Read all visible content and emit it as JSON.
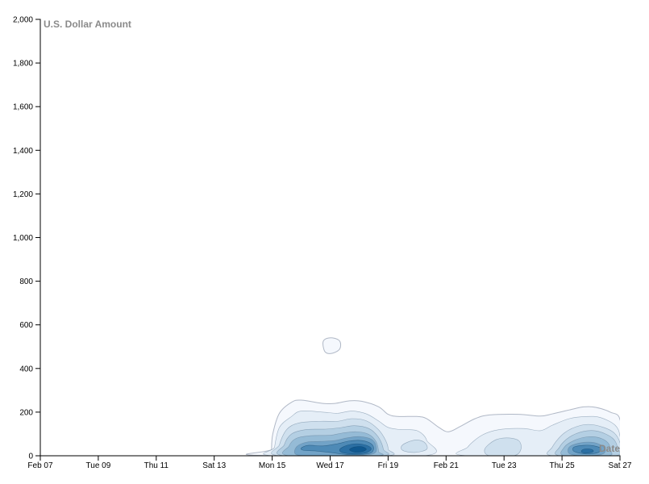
{
  "chart_data": {
    "type": "density-contour",
    "title": "",
    "xlabel": "Date",
    "ylabel": "U.S. Dollar Amount",
    "x_domain": [
      "2021-02-07",
      "2021-02-27"
    ],
    "ylim": [
      0,
      2000
    ],
    "x_ticks": [
      {
        "date": "2021-02-07",
        "label": "Feb 07"
      },
      {
        "date": "2021-02-09",
        "label": "Tue 09"
      },
      {
        "date": "2021-02-11",
        "label": "Thu 11"
      },
      {
        "date": "2021-02-13",
        "label": "Sat 13"
      },
      {
        "date": "2021-02-15",
        "label": "Mon 15"
      },
      {
        "date": "2021-02-17",
        "label": "Wed 17"
      },
      {
        "date": "2021-02-19",
        "label": "Fri 19"
      },
      {
        "date": "2021-02-21",
        "label": "Feb 21"
      },
      {
        "date": "2021-02-23",
        "label": "Tue 23"
      },
      {
        "date": "2021-02-25",
        "label": "Thu 25"
      },
      {
        "date": "2021-02-27",
        "label": "Sat 27"
      }
    ],
    "y_ticks": [
      {
        "value": 0,
        "label": "0"
      },
      {
        "value": 200,
        "label": "200"
      },
      {
        "value": 400,
        "label": "400"
      },
      {
        "value": 600,
        "label": "600"
      },
      {
        "value": 800,
        "label": "800"
      },
      {
        "value": 1000,
        "label": "1,000"
      },
      {
        "value": 1200,
        "label": "1,200"
      },
      {
        "value": 1400,
        "label": "1,400"
      },
      {
        "value": 1600,
        "label": "1,600"
      },
      {
        "value": 1800,
        "label": "1,800"
      },
      {
        "value": 2000,
        "label": "2,000"
      }
    ],
    "grid": false,
    "color_scheme": [
      "#f5f8fd",
      "#e5eef7",
      "#cfe0ee",
      "#b4cfe3",
      "#95bbd6",
      "#72a3c7",
      "#4e8ab6",
      "#2b6fa3",
      "#10588f"
    ],
    "outline_color": "#b0b8c6",
    "contours": [
      {
        "level": 1,
        "polygon": [
          [
            "2021-02-15T00:00",
            0
          ],
          [
            "2021-02-14T23:30",
            30
          ],
          [
            "2021-02-15T00:30",
            100
          ],
          [
            "2021-02-15T06:00",
            195
          ],
          [
            "2021-02-15T16:00",
            245
          ],
          [
            "2021-02-16T00:00",
            255
          ],
          [
            "2021-02-16T18:00",
            240
          ],
          [
            "2021-02-17T04:00",
            240
          ],
          [
            "2021-02-17T16:00",
            252
          ],
          [
            "2021-02-18T02:00",
            250
          ],
          [
            "2021-02-18T16:00",
            225
          ],
          [
            "2021-02-19T00:00",
            190
          ],
          [
            "2021-02-19T08:00",
            180
          ],
          [
            "2021-02-20T00:00",
            180
          ],
          [
            "2021-02-20T08:00",
            170
          ],
          [
            "2021-02-20T18:00",
            130
          ],
          [
            "2021-02-21T02:00",
            110
          ],
          [
            "2021-02-21T12:00",
            135
          ],
          [
            "2021-02-22T00:00",
            170
          ],
          [
            "2021-02-22T12:00",
            187
          ],
          [
            "2021-02-23T12:00",
            190
          ],
          [
            "2021-02-24T06:00",
            182
          ],
          [
            "2021-02-24T16:00",
            192
          ],
          [
            "2021-02-25T06:00",
            210
          ],
          [
            "2021-02-25T18:00",
            224
          ],
          [
            "2021-02-26T04:00",
            222
          ],
          [
            "2021-02-26T16:00",
            200
          ],
          [
            "2021-02-27T00:00",
            165
          ],
          [
            "2021-02-27T00:00",
            0
          ]
        ]
      },
      {
        "level": 1,
        "polygon": [
          [
            "2021-02-16T18:00",
            515
          ],
          [
            "2021-02-16T20:00",
            535
          ],
          [
            "2021-02-17T02:00",
            540
          ],
          [
            "2021-02-17T08:00",
            525
          ],
          [
            "2021-02-17T08:00",
            490
          ],
          [
            "2021-02-17T02:00",
            470
          ],
          [
            "2021-02-16T20:00",
            475
          ]
        ]
      },
      {
        "level": 2,
        "polygon": [
          [
            "2021-02-15T02:00",
            0
          ],
          [
            "2021-02-15T02:00",
            40
          ],
          [
            "2021-02-15T06:00",
            130
          ],
          [
            "2021-02-15T16:00",
            180
          ],
          [
            "2021-02-16T00:00",
            205
          ],
          [
            "2021-02-16T18:00",
            200
          ],
          [
            "2021-02-17T06:00",
            195
          ],
          [
            "2021-02-17T18:00",
            205
          ],
          [
            "2021-02-18T06:00",
            192
          ],
          [
            "2021-02-18T16:00",
            160
          ],
          [
            "2021-02-19T00:00",
            130
          ],
          [
            "2021-02-19T10:00",
            120
          ],
          [
            "2021-02-20T00:00",
            115
          ],
          [
            "2021-02-20T08:00",
            70
          ],
          [
            "2021-02-20T06:00",
            0
          ]
        ]
      },
      {
        "level": 2,
        "polygon": [
          [
            "2021-02-21T18:00",
            0
          ],
          [
            "2021-02-21T18:00",
            40
          ],
          [
            "2021-02-22T06:00",
            95
          ],
          [
            "2021-02-22T20:00",
            120
          ],
          [
            "2021-02-23T16:00",
            125
          ],
          [
            "2021-02-24T06:00",
            115
          ],
          [
            "2021-02-24T16:00",
            140
          ],
          [
            "2021-02-25T06:00",
            170
          ],
          [
            "2021-02-25T20:00",
            180
          ],
          [
            "2021-02-26T08:00",
            175
          ],
          [
            "2021-02-26T20:00",
            140
          ],
          [
            "2021-02-27T00:00",
            90
          ],
          [
            "2021-02-27T00:00",
            0
          ]
        ]
      },
      {
        "level": 3,
        "polygon": [
          [
            "2021-02-15T06:00",
            0
          ],
          [
            "2021-02-15T06:00",
            50
          ],
          [
            "2021-02-15T12:00",
            120
          ],
          [
            "2021-02-15T22:00",
            150
          ],
          [
            "2021-02-16T16:00",
            158
          ],
          [
            "2021-02-17T06:00",
            158
          ],
          [
            "2021-02-17T18:00",
            170
          ],
          [
            "2021-02-18T06:00",
            160
          ],
          [
            "2021-02-18T16:00",
            120
          ],
          [
            "2021-02-18T22:00",
            70
          ],
          [
            "2021-02-19T00:00",
            30
          ],
          [
            "2021-02-18T22:00",
            0
          ]
        ]
      },
      {
        "level": 3,
        "polygon": [
          [
            "2021-02-19T12:00",
            50
          ],
          [
            "2021-02-19T22:00",
            72
          ],
          [
            "2021-02-20T06:00",
            62
          ],
          [
            "2021-02-20T08:00",
            30
          ],
          [
            "2021-02-19T22:00",
            15
          ],
          [
            "2021-02-19T12:00",
            25
          ]
        ]
      },
      {
        "level": 3,
        "polygon": [
          [
            "2021-02-22T12:00",
            0
          ],
          [
            "2021-02-22T08:00",
            30
          ],
          [
            "2021-02-22T16:00",
            70
          ],
          [
            "2021-02-23T02:00",
            82
          ],
          [
            "2021-02-23T12:00",
            70
          ],
          [
            "2021-02-23T14:00",
            30
          ],
          [
            "2021-02-23T08:00",
            0
          ]
        ]
      },
      {
        "level": 3,
        "polygon": [
          [
            "2021-02-24T16:00",
            0
          ],
          [
            "2021-02-24T16:00",
            40
          ],
          [
            "2021-02-25T02:00",
            105
          ],
          [
            "2021-02-25T16:00",
            140
          ],
          [
            "2021-02-26T04:00",
            140
          ],
          [
            "2021-02-26T18:00",
            110
          ],
          [
            "2021-02-27T00:00",
            60
          ],
          [
            "2021-02-27T00:00",
            0
          ]
        ]
      },
      {
        "level": 4,
        "polygon": [
          [
            "2021-02-15T10:00",
            0
          ],
          [
            "2021-02-15T10:00",
            50
          ],
          [
            "2021-02-15T16:00",
            100
          ],
          [
            "2021-02-16T04:00",
            120
          ],
          [
            "2021-02-16T20:00",
            122
          ],
          [
            "2021-02-17T08:00",
            128
          ],
          [
            "2021-02-17T20:00",
            138
          ],
          [
            "2021-02-18T08:00",
            125
          ],
          [
            "2021-02-18T16:00",
            85
          ],
          [
            "2021-02-18T20:00",
            30
          ],
          [
            "2021-02-18T18:00",
            0
          ]
        ]
      },
      {
        "level": 4,
        "polygon": [
          [
            "2021-02-24T22:00",
            0
          ],
          [
            "2021-02-24T22:00",
            40
          ],
          [
            "2021-02-25T06:00",
            85
          ],
          [
            "2021-02-25T18:00",
            112
          ],
          [
            "2021-02-26T06:00",
            112
          ],
          [
            "2021-02-26T18:00",
            80
          ],
          [
            "2021-02-26T22:00",
            35
          ],
          [
            "2021-02-26T20:00",
            0
          ]
        ]
      },
      {
        "level": 5,
        "polygon": [
          [
            "2021-02-15T14:00",
            0
          ],
          [
            "2021-02-15T14:00",
            45
          ],
          [
            "2021-02-15T20:00",
            80
          ],
          [
            "2021-02-16T08:00",
            92
          ],
          [
            "2021-02-17T00:00",
            94
          ],
          [
            "2021-02-17T10:00",
            104
          ],
          [
            "2021-02-17T22:00",
            110
          ],
          [
            "2021-02-18T08:00",
            98
          ],
          [
            "2021-02-18T14:00",
            65
          ],
          [
            "2021-02-18T16:00",
            20
          ],
          [
            "2021-02-18T14:00",
            0
          ]
        ]
      },
      {
        "level": 5,
        "polygon": [
          [
            "2021-02-25T02:00",
            0
          ],
          [
            "2021-02-25T02:00",
            40
          ],
          [
            "2021-02-25T10:00",
            70
          ],
          [
            "2021-02-25T20:00",
            86
          ],
          [
            "2021-02-26T06:00",
            84
          ],
          [
            "2021-02-26T14:00",
            60
          ],
          [
            "2021-02-26T16:00",
            25
          ],
          [
            "2021-02-26T14:00",
            0
          ]
        ]
      },
      {
        "level": 6,
        "polygon": [
          [
            "2021-02-15T20:00",
            5
          ],
          [
            "2021-02-15T20:00",
            40
          ],
          [
            "2021-02-16T04:00",
            62
          ],
          [
            "2021-02-16T16:00",
            66
          ],
          [
            "2021-02-17T04:00",
            70
          ],
          [
            "2021-02-17T14:00",
            82
          ],
          [
            "2021-02-18T00:00",
            88
          ],
          [
            "2021-02-18T10:00",
            76
          ],
          [
            "2021-02-18T14:00",
            45
          ],
          [
            "2021-02-18T12:00",
            10
          ],
          [
            "2021-02-17T18:00",
            0
          ],
          [
            "2021-02-16T12:00",
            0
          ]
        ]
      },
      {
        "level": 6,
        "polygon": [
          [
            "2021-02-25T06:00",
            10
          ],
          [
            "2021-02-25T06:00",
            40
          ],
          [
            "2021-02-25T14:00",
            58
          ],
          [
            "2021-02-26T00:00",
            62
          ],
          [
            "2021-02-26T08:00",
            50
          ],
          [
            "2021-02-26T12:00",
            25
          ],
          [
            "2021-02-26T08:00",
            5
          ],
          [
            "2021-02-25T16:00",
            0
          ]
        ]
      },
      {
        "level": 7,
        "polygon": [
          [
            "2021-02-16T00:00",
            35
          ],
          [
            "2021-02-16T06:00",
            48
          ],
          [
            "2021-02-16T18:00",
            45
          ],
          [
            "2021-02-17T06:00",
            55
          ],
          [
            "2021-02-17T16:00",
            68
          ],
          [
            "2021-02-18T02:00",
            70
          ],
          [
            "2021-02-18T10:00",
            55
          ],
          [
            "2021-02-18T12:00",
            30
          ],
          [
            "2021-02-18T08:00",
            10
          ],
          [
            "2021-02-17T16:00",
            5
          ],
          [
            "2021-02-17T00:00",
            15
          ],
          [
            "2021-02-16T12:00",
            22
          ],
          [
            "2021-02-16T02:00",
            25
          ]
        ]
      },
      {
        "level": 7,
        "polygon": [
          [
            "2021-02-25T10:00",
            20
          ],
          [
            "2021-02-25T10:00",
            40
          ],
          [
            "2021-02-25T18:00",
            48
          ],
          [
            "2021-02-26T02:00",
            46
          ],
          [
            "2021-02-26T08:00",
            34
          ],
          [
            "2021-02-26T06:00",
            15
          ],
          [
            "2021-02-25T20:00",
            8
          ]
        ]
      },
      {
        "level": 8,
        "polygon": [
          [
            "2021-02-17T08:00",
            30
          ],
          [
            "2021-02-17T14:00",
            48
          ],
          [
            "2021-02-17T22:00",
            55
          ],
          [
            "2021-02-18T06:00",
            48
          ],
          [
            "2021-02-18T10:00",
            32
          ],
          [
            "2021-02-18T06:00",
            14
          ],
          [
            "2021-02-17T20:00",
            8
          ],
          [
            "2021-02-17T10:00",
            15
          ]
        ]
      },
      {
        "level": 8,
        "polygon": [
          [
            "2021-02-25T16:00",
            20
          ],
          [
            "2021-02-25T18:00",
            30
          ],
          [
            "2021-02-26T00:00",
            30
          ],
          [
            "2021-02-26T02:00",
            20
          ],
          [
            "2021-02-25T22:00",
            13
          ],
          [
            "2021-02-25T18:00",
            13
          ]
        ]
      },
      {
        "level": 9,
        "polygon": [
          [
            "2021-02-17T16:00",
            28
          ],
          [
            "2021-02-17T20:00",
            40
          ],
          [
            "2021-02-18T02:00",
            42
          ],
          [
            "2021-02-18T06:00",
            30
          ],
          [
            "2021-02-18T02:00",
            18
          ],
          [
            "2021-02-17T20:00",
            17
          ]
        ]
      }
    ]
  }
}
